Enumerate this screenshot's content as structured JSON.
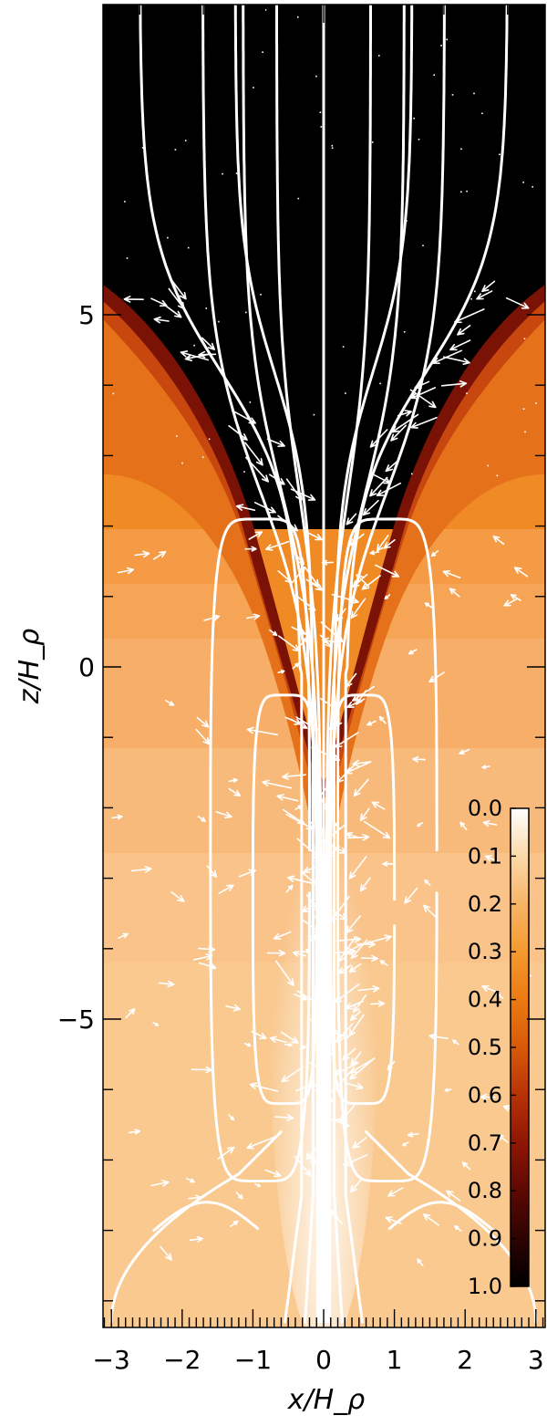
{
  "chart_data": {
    "type": "heatmap",
    "xlabel": "x/H_ρ",
    "ylabel": "z/H_ρ",
    "xlim": [
      -3.1,
      3.1
    ],
    "ylim": [
      -9.3,
      9.4
    ],
    "x_ticks": [
      -3,
      -2,
      -1,
      0,
      1,
      2,
      3
    ],
    "x_tick_labels": [
      "−3",
      "−2",
      "−1",
      "0",
      "1",
      "2",
      "3"
    ],
    "y_ticks": [
      -5,
      0,
      5
    ],
    "y_tick_labels": [
      "−5",
      "0",
      "5"
    ],
    "colorbar": {
      "ticks": [
        0.0,
        0.1,
        0.2,
        0.3,
        0.4,
        0.5,
        0.6,
        0.7,
        0.8,
        0.9,
        1.0
      ],
      "tick_labels": [
        "0.0",
        "0.1",
        "0.2",
        "0.3",
        "0.4",
        "0.5",
        "0.6",
        "0.7",
        "0.8",
        "0.9",
        "1.0"
      ],
      "range": [
        0.0,
        1.0
      ],
      "orientation": "vertical, 0.0 at top",
      "placement": "inside plot, lower-right",
      "colormap": [
        "#ffffff",
        "#fbd9a8",
        "#f8b466",
        "#f49a2e",
        "#eb7a12",
        "#d85a08",
        "#b83206",
        "#8f1604",
        "#5e0802",
        "#2d0301",
        "#000000"
      ]
    },
    "contour_lines": "white field lines (fan-shaped vertical field lines above, closed loops below)",
    "vector_field": "white arrows",
    "grid": false
  }
}
